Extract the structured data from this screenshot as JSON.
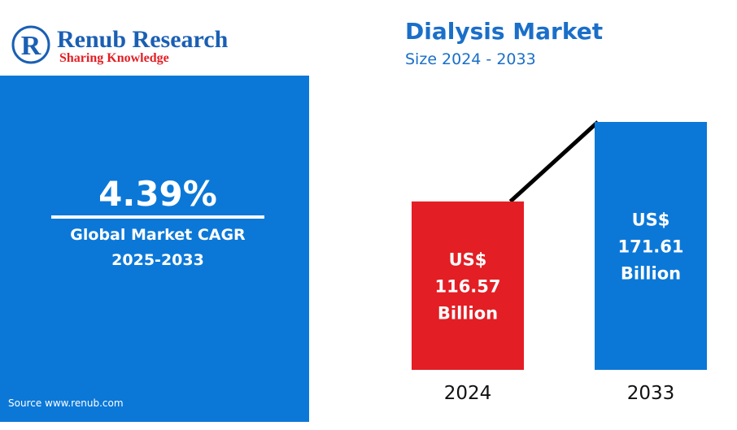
{
  "logo": {
    "name": "Renub Research",
    "tagline": "Sharing Knowledge"
  },
  "cagr": {
    "value": "4.39%",
    "label": "Global Market CAGR",
    "period": "2025-2033"
  },
  "source": "Source  www.renub.com",
  "chart_data": {
    "type": "bar",
    "title": "Dialysis Market",
    "subtitle": "Size 2024 - 2033",
    "categories": [
      "2024",
      "2033"
    ],
    "values": [
      116.57,
      171.61
    ],
    "value_labels": [
      "US$ 116.57 Billion",
      "US$ 171.61 Billion"
    ],
    "colors": [
      "#e31e24",
      "#0b78d8"
    ]
  }
}
